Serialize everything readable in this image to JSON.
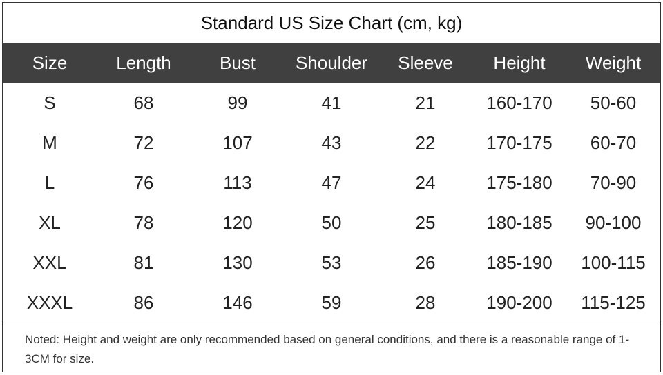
{
  "title": "Standard US Size Chart (cm, kg)",
  "table": {
    "header": [
      "Size",
      "Length",
      "Bust",
      "Shoulder",
      "Sleeve",
      "Height",
      "Weight"
    ],
    "rows": [
      [
        "S",
        68,
        99,
        41,
        21,
        "160-170",
        "50-60"
      ],
      [
        "M",
        72,
        107,
        43,
        22,
        "170-175",
        "60-70"
      ],
      [
        "L",
        76,
        113,
        47,
        24,
        "175-180",
        "70-90"
      ],
      [
        "XL",
        78,
        120,
        50,
        25,
        "180-185",
        "90-100"
      ],
      [
        "XXL",
        81,
        130,
        53,
        26,
        "185-190",
        "100-115"
      ],
      [
        "XXXL",
        86,
        146,
        59,
        28,
        "190-200",
        "115-125"
      ]
    ]
  },
  "note": "Noted: Height and weight are only recommended based on general conditions, and there is a reasonable range of 1-3CM for size."
}
